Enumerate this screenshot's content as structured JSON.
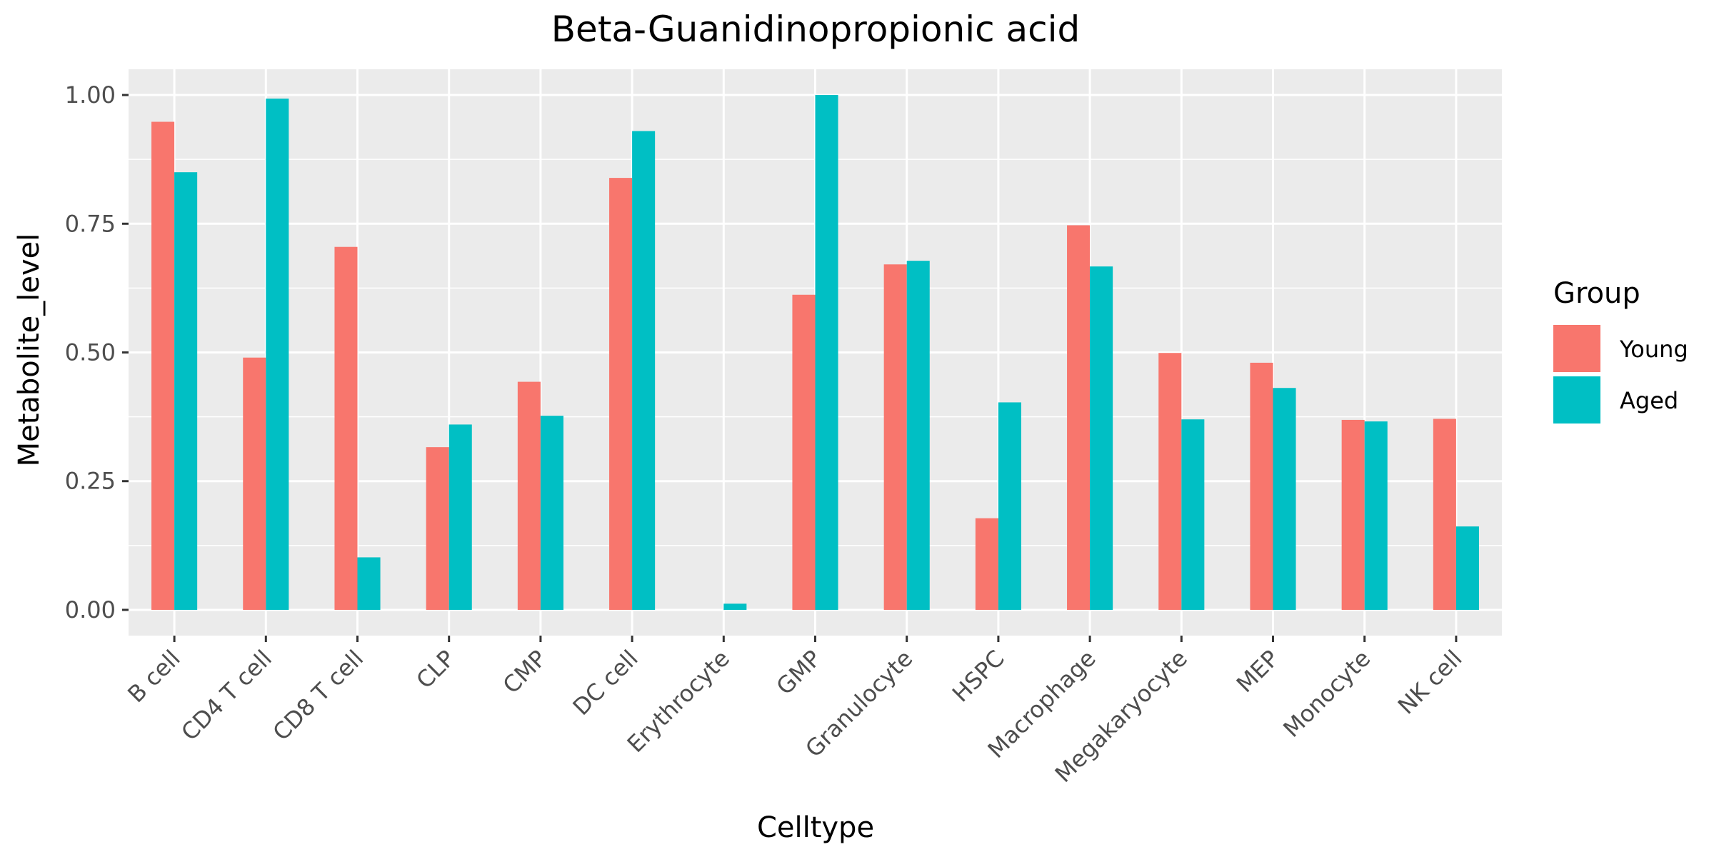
{
  "chart_data": {
    "type": "bar",
    "title": "Beta-Guanidinopropionic acid",
    "xlabel": "Celltype",
    "ylabel": "Metabolite_level",
    "ylim": [
      -0.05,
      1.05
    ],
    "yticks": [
      0.0,
      0.25,
      0.5,
      0.75,
      1.0
    ],
    "ytick_labels": [
      "0.00",
      "0.25",
      "0.50",
      "0.75",
      "1.00"
    ],
    "grid": true,
    "legend_position": "right",
    "legend_title": "Group",
    "categories": [
      "B cell",
      "CD4 T cell",
      "CD8 T cell",
      "CLP",
      "CMP",
      "DC cell",
      "Erythrocyte",
      "GMP",
      "Granulocyte",
      "HSPC",
      "Macrophage",
      "Megakaryocyte",
      "MEP",
      "Monocyte",
      "NK cell"
    ],
    "series": [
      {
        "name": "Young",
        "color": "#F8766D",
        "values": [
          0.948,
          0.49,
          0.705,
          0.316,
          0.443,
          0.839,
          0.0,
          0.612,
          0.671,
          0.178,
          0.747,
          0.499,
          0.48,
          0.369,
          0.371
        ]
      },
      {
        "name": "Aged",
        "color": "#00BFC4",
        "values": [
          0.85,
          0.993,
          0.102,
          0.36,
          0.377,
          0.93,
          0.012,
          1.0,
          0.678,
          0.403,
          0.667,
          0.37,
          0.431,
          0.366,
          0.162
        ]
      }
    ],
    "colors": {
      "panel_background": "#EBEBEB",
      "grid_line": "#FFFFFF",
      "tick_mark": "#333333",
      "tick_label": "#4D4D4D"
    }
  }
}
